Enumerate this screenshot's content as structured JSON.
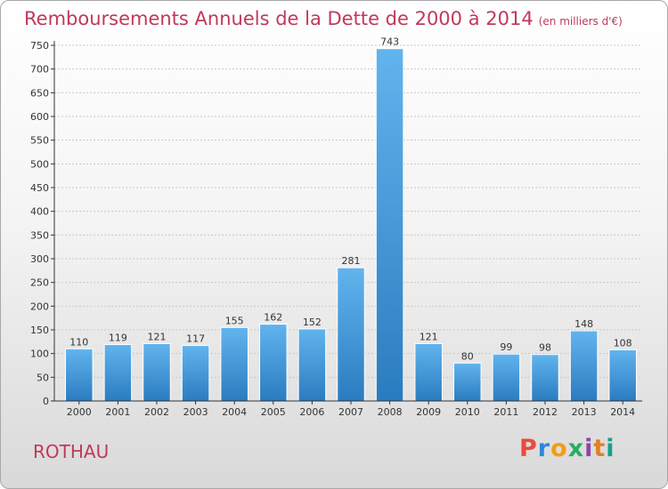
{
  "header": {
    "title": "Remboursements Annuels de la Dette de 2000 à 2014",
    "unit": "(en milliers d'€)"
  },
  "commune": "ROTHAU",
  "logo": {
    "text": "Proxiti",
    "colors": [
      "#e84c3d",
      "#2e86de",
      "#f39c12",
      "#27ae60",
      "#8e44ad",
      "#e67e22",
      "#16a085"
    ]
  },
  "colors": {
    "title": "#c0395a",
    "bar_light": "#62b4ee",
    "bar_dark": "#2a7cc0",
    "axis": "#333333"
  },
  "chart_data": {
    "type": "bar",
    "categories": [
      "2000",
      "2001",
      "2002",
      "2003",
      "2004",
      "2005",
      "2006",
      "2007",
      "2008",
      "2009",
      "2010",
      "2011",
      "2012",
      "2013",
      "2014"
    ],
    "values": [
      110,
      119,
      121,
      117,
      155,
      162,
      152,
      281,
      743,
      121,
      80,
      99,
      98,
      148,
      108
    ],
    "yticks": [
      0,
      50,
      100,
      150,
      200,
      250,
      300,
      350,
      400,
      450,
      500,
      550,
      600,
      650,
      700,
      750
    ],
    "ylim": [
      0,
      750
    ],
    "grid": true
  }
}
